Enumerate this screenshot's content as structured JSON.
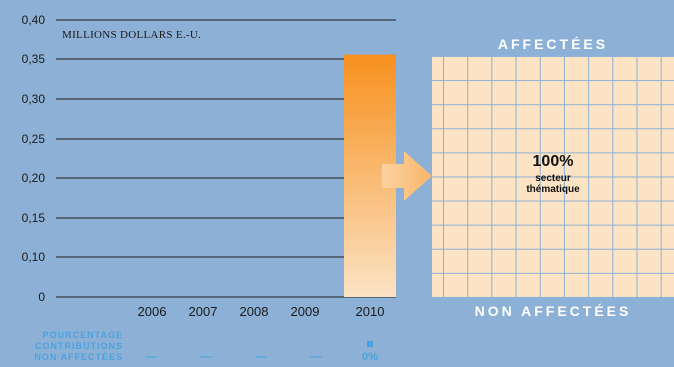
{
  "chart_data": {
    "type": "bar",
    "unit_label": "MILLIONS DOLLARS E.-U.",
    "categories": [
      "2006",
      "2007",
      "2008",
      "2009",
      "2010"
    ],
    "values": [
      0,
      0,
      0,
      0,
      0.35
    ],
    "y_ticks": [
      "0",
      "0,10",
      "0,15",
      "0,20",
      "0,25",
      "0,30",
      "0,35",
      "0,40"
    ],
    "ylim": [
      0,
      0.4
    ],
    "grid": true,
    "bar_colors": {
      "top": "#f7901e",
      "bottom": "#fbe3c3"
    }
  },
  "panel": {
    "top_title": "AFFECTÉES",
    "bottom_title": "NON AFFECTÉES",
    "share_percent": "100%",
    "share_label_line1": "secteur",
    "share_label_line2": "thématique"
  },
  "footer": {
    "row_label_lines": [
      "POURCENTAGE",
      "CONTRIBUTIONS",
      "NON AFFECTÉES"
    ],
    "values": [
      "—",
      "—",
      "—",
      "—",
      "0%"
    ]
  }
}
